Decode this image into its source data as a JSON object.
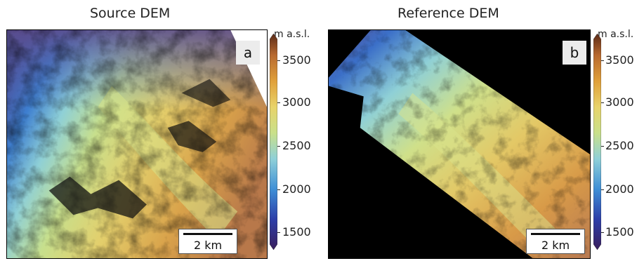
{
  "panels": [
    {
      "title": "Source DEM",
      "letter": "a",
      "scale_label": "2 km"
    },
    {
      "title": "Reference DEM",
      "letter": "b",
      "scale_label": "2 km"
    }
  ],
  "colorbar": {
    "unit": "m a.s.l.",
    "ticks": [
      "3500",
      "3000",
      "2500",
      "2000",
      "1500"
    ],
    "colors": [
      "#3a1f5c",
      "#2d3ea8",
      "#3f8fd6",
      "#8fd0d8",
      "#c9e08a",
      "#e8d36a",
      "#e0a03a",
      "#b86a30",
      "#5a2a18"
    ]
  }
}
